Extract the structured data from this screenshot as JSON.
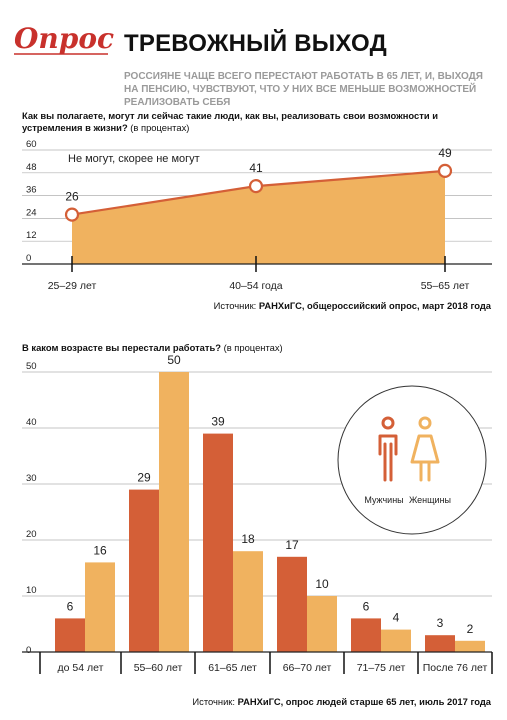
{
  "header": {
    "logo_text": "Опрос",
    "title": "ТРЕВОЖНЫЙ ВЫХОД",
    "subtitle": "РОССИЯНЕ ЧАЩЕ ВСЕГО ПЕРЕСТАЮТ РАБОТАТЬ В 65 ЛЕТ, И, ВЫХОДЯ НА ПЕНСИЮ, ЧУВСТВУЮТ, ЧТО У НИХ ВСЕ МЕНЬШЕ ВОЗМОЖНОСТЕЙ РЕАЛИЗОВАТЬ СЕБЯ"
  },
  "colors": {
    "brand_red": "#c8312c",
    "dark_orange": "#d45f37",
    "light_orange": "#f0b25f",
    "area_fill": "#f0b25f",
    "marker_stroke": "#d45f37",
    "grid": "#b0b0b0"
  },
  "chart_data": [
    {
      "type": "area",
      "question": "Как вы полагаете, могут ли сейчас такие люди, как вы, реализовать свои возможности и устремления в жизни?",
      "question_note": "(в процентах)",
      "series_label": "Не могут, скорее не могут",
      "categories": [
        "25–29 лет",
        "40–54 года",
        "55–65 лет"
      ],
      "values": [
        26,
        41,
        49
      ],
      "yticks": [
        0,
        12,
        24,
        36,
        48,
        60
      ],
      "ylim": [
        0,
        60
      ],
      "source_prefix": "Источник:",
      "source": "РАНХиГС, общероссийский опрос, март 2018 года"
    },
    {
      "type": "bar",
      "question": "В каком возрасте вы перестали работать?",
      "question_note": "(в процентах)",
      "categories": [
        "до 54 лет",
        "55–60 лет",
        "61–65 лет",
        "66–70 лет",
        "71–75 лет",
        "После 76 лет"
      ],
      "series": [
        {
          "name": "Мужчины",
          "values": [
            6,
            29,
            39,
            17,
            6,
            3
          ],
          "color": "#d45f37"
        },
        {
          "name": "Женщины",
          "values": [
            16,
            50,
            18,
            10,
            4,
            2
          ],
          "color": "#f0b25f"
        }
      ],
      "yticks": [
        0,
        10,
        20,
        30,
        40,
        50
      ],
      "ylim": [
        0,
        55
      ],
      "legend_position": "right",
      "source_prefix": "Источник:",
      "source": "РАНХиГС, опрос людей старше 65 лет, июль 2017 года"
    }
  ]
}
